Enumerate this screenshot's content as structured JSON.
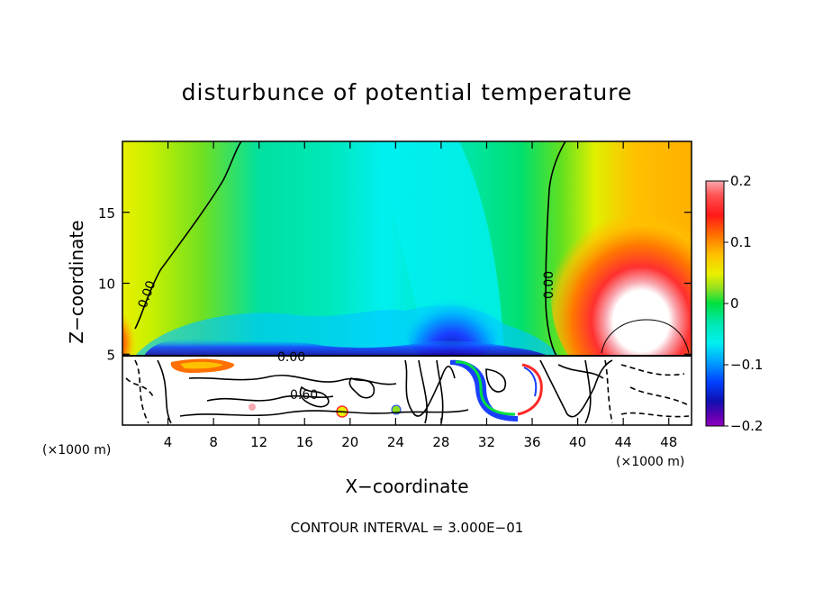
{
  "chart_data": {
    "type": "heatmap",
    "title": "disturbunce of potential temperature",
    "xlabel": "X−coordinate",
    "ylabel": "Z−coordinate",
    "x_unit": "(×1000 m)",
    "y_unit": "(×1000 m)",
    "xlim": [
      0,
      50
    ],
    "ylim": [
      0,
      20
    ],
    "x_ticks": [
      "4",
      "8",
      "12",
      "16",
      "20",
      "24",
      "28",
      "32",
      "36",
      "40",
      "44",
      "48"
    ],
    "y_ticks": [
      "5",
      "10",
      "15"
    ],
    "colorbar": {
      "range": [
        -0.2,
        0.2
      ],
      "ticks": [
        "0.2",
        "0.1",
        "0",
        "−0.1",
        "−0.2"
      ]
    },
    "contour_labels": [
      "0.00",
      "0.00",
      "0.00",
      "0.60"
    ],
    "footer": "CONTOUR INTERVAL = 3.000E−01",
    "colors": {
      "warm_max": "#f7a0a8",
      "warm": "#ff2a2a",
      "orange": "#ffb000",
      "yellow": "#f4f000",
      "green": "#22dd33",
      "neutral": "#00e0a0",
      "cyan": "#00f0f0",
      "blue": "#1a40ff",
      "cold_min": "#8a00c0"
    }
  }
}
